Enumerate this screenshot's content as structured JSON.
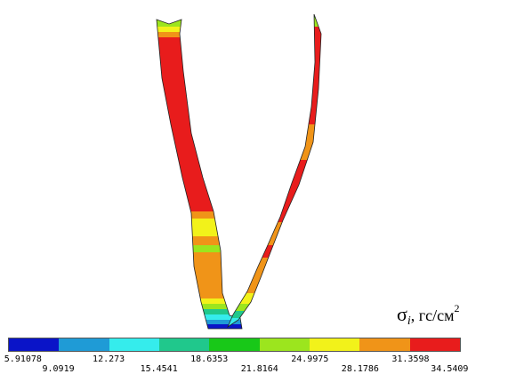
{
  "label": {
    "symbol": "σ",
    "subscript": "i",
    "units": ", гс/см",
    "superscript": "2"
  },
  "legend": {
    "colors": [
      "#0a14c8",
      "#1f9bd6",
      "#35ecec",
      "#20c88c",
      "#18c818",
      "#9ce51e",
      "#f2f21a",
      "#f09418",
      "#e81c1c"
    ],
    "ticks": [
      "5.91078",
      "9.0919",
      "12.273",
      "15.4541",
      "18.6353",
      "21.8164",
      "24.9975",
      "28.1786",
      "31.3598",
      "34.5409"
    ]
  }
}
